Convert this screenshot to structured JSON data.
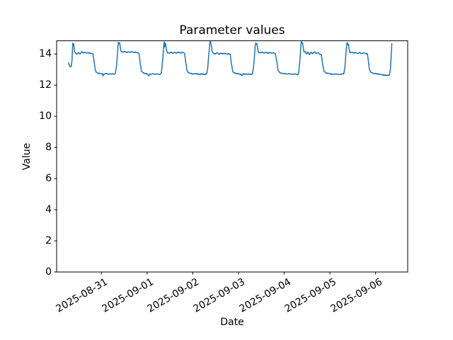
{
  "figure": {
    "background": "#ffffff",
    "text_color": "#000000",
    "spine_color": "#000000"
  },
  "chart_data": {
    "type": "line",
    "title": "Parameter values",
    "xlabel": "Date",
    "ylabel": "Value",
    "grid": false,
    "legend": null,
    "series_color": "#1f77b4",
    "line_width": 1.5,
    "ylim": [
      0,
      14.85
    ],
    "yticks": [
      {
        "value": 0,
        "label": "0"
      },
      {
        "value": 2,
        "label": "2"
      },
      {
        "value": 4,
        "label": "4"
      },
      {
        "value": 6,
        "label": "6"
      },
      {
        "value": 8,
        "label": "8"
      },
      {
        "value": 10,
        "label": "10"
      },
      {
        "value": 12,
        "label": "12"
      },
      {
        "value": 14,
        "label": "14"
      }
    ],
    "xlim": [
      "2025-08-30T00:30",
      "2025-09-06T16:50"
    ],
    "xticks": [
      {
        "time": "2025-08-31T00:00",
        "label": "2025-08-31"
      },
      {
        "time": "2025-09-01T00:00",
        "label": "2025-09-01"
      },
      {
        "time": "2025-09-02T00:00",
        "label": "2025-09-02"
      },
      {
        "time": "2025-09-03T00:00",
        "label": "2025-09-03"
      },
      {
        "time": "2025-09-04T00:00",
        "label": "2025-09-04"
      },
      {
        "time": "2025-09-05T00:00",
        "label": "2025-09-05"
      },
      {
        "time": "2025-09-06T00:00",
        "label": "2025-09-06"
      }
    ],
    "x_tick_rotation_deg": 30,
    "noise": {
      "amplitude": 0.025,
      "sample_minutes": 12,
      "seed": 42
    },
    "series": [
      {
        "points": [
          [
            "2025-08-30T06:45",
            13.45
          ],
          [
            "2025-08-30T07:10",
            13.28
          ],
          [
            "2025-08-30T07:40",
            13.18
          ],
          [
            "2025-08-30T08:10",
            13.22
          ],
          [
            "2025-08-30T08:35",
            13.6
          ],
          [
            "2025-08-30T08:50",
            14.3
          ],
          [
            "2025-08-30T09:00",
            14.7
          ],
          [
            "2025-08-30T09:10",
            14.62
          ],
          [
            "2025-08-30T09:25",
            14.66
          ],
          [
            "2025-08-30T09:40",
            14.4
          ],
          [
            "2025-08-30T09:55",
            14.15
          ],
          [
            "2025-08-30T10:30",
            14.05
          ],
          [
            "2025-08-30T11:15",
            14.0
          ],
          [
            "2025-08-30T12:00",
            14.1
          ],
          [
            "2025-08-30T12:45",
            14.0
          ],
          [
            "2025-08-30T13:40",
            14.15
          ],
          [
            "2025-08-30T14:30",
            14.08
          ],
          [
            "2025-08-30T15:30",
            14.1
          ],
          [
            "2025-08-30T16:30",
            14.05
          ],
          [
            "2025-08-30T17:30",
            14.08
          ],
          [
            "2025-08-30T18:30",
            14.04
          ],
          [
            "2025-08-30T19:30",
            14.02
          ],
          [
            "2025-08-30T20:00",
            13.7
          ],
          [
            "2025-08-30T20:45",
            13.0
          ],
          [
            "2025-08-30T21:20",
            12.82
          ],
          [
            "2025-08-30T22:15",
            12.77
          ],
          [
            "2025-08-30T23:15",
            12.74
          ],
          [
            "2025-08-31T00:30",
            12.74
          ],
          [
            "2025-08-31T00:55",
            12.6
          ],
          [
            "2025-08-31T01:15",
            12.72
          ],
          [
            "2025-08-31T02:30",
            12.74
          ],
          [
            "2025-08-31T04:00",
            12.71
          ],
          [
            "2025-08-31T05:30",
            12.73
          ],
          [
            "2025-08-31T06:45",
            12.7
          ],
          [
            "2025-08-31T07:20",
            12.76
          ],
          [
            "2025-08-31T08:00",
            13.3
          ],
          [
            "2025-08-31T08:40",
            14.4
          ],
          [
            "2025-08-31T08:55",
            14.75
          ],
          [
            "2025-08-31T09:15",
            14.68
          ],
          [
            "2025-08-31T09:35",
            14.72
          ],
          [
            "2025-08-31T09:55",
            14.45
          ],
          [
            "2025-08-31T10:15",
            14.18
          ],
          [
            "2025-08-31T11:00",
            14.12
          ],
          [
            "2025-08-31T12:00",
            14.16
          ],
          [
            "2025-08-31T13:00",
            14.1
          ],
          [
            "2025-08-31T14:00",
            14.14
          ],
          [
            "2025-08-31T15:00",
            14.1
          ],
          [
            "2025-08-31T16:00",
            14.15
          ],
          [
            "2025-08-31T17:00",
            14.1
          ],
          [
            "2025-08-31T18:00",
            14.13
          ],
          [
            "2025-08-31T19:00",
            14.08
          ],
          [
            "2025-08-31T19:45",
            14.05
          ],
          [
            "2025-08-31T20:20",
            13.45
          ],
          [
            "2025-08-31T21:00",
            12.9
          ],
          [
            "2025-08-31T21:45",
            12.8
          ],
          [
            "2025-08-31T22:45",
            12.76
          ],
          [
            "2025-09-01T00:00",
            12.73
          ],
          [
            "2025-09-01T01:00",
            12.6
          ],
          [
            "2025-09-01T01:20",
            12.71
          ],
          [
            "2025-09-01T02:45",
            12.73
          ],
          [
            "2025-09-01T04:15",
            12.7
          ],
          [
            "2025-09-01T05:45",
            12.72
          ],
          [
            "2025-09-01T07:00",
            12.71
          ],
          [
            "2025-09-01T07:30",
            12.8
          ],
          [
            "2025-09-01T08:15",
            13.7
          ],
          [
            "2025-09-01T08:45",
            14.55
          ],
          [
            "2025-09-01T09:00",
            14.78
          ],
          [
            "2025-09-01T09:15",
            14.45
          ],
          [
            "2025-09-01T09:30",
            14.7
          ],
          [
            "2025-09-01T09:45",
            14.65
          ],
          [
            "2025-09-01T10:05",
            14.3
          ],
          [
            "2025-09-01T10:30",
            14.1
          ],
          [
            "2025-09-01T11:30",
            14.06
          ],
          [
            "2025-09-01T12:30",
            14.12
          ],
          [
            "2025-09-01T13:30",
            14.05
          ],
          [
            "2025-09-01T14:30",
            14.11
          ],
          [
            "2025-09-01T15:30",
            14.06
          ],
          [
            "2025-09-01T16:30",
            14.12
          ],
          [
            "2025-09-01T17:30",
            14.07
          ],
          [
            "2025-09-01T18:45",
            14.1
          ],
          [
            "2025-09-01T19:40",
            14.04
          ],
          [
            "2025-09-01T20:15",
            13.5
          ],
          [
            "2025-09-01T21:00",
            12.92
          ],
          [
            "2025-09-01T21:50",
            12.8
          ],
          [
            "2025-09-01T23:00",
            12.75
          ],
          [
            "2025-09-02T00:15",
            12.72
          ],
          [
            "2025-09-02T01:45",
            12.74
          ],
          [
            "2025-09-02T03:15",
            12.7
          ],
          [
            "2025-09-02T04:45",
            12.72
          ],
          [
            "2025-09-02T06:15",
            12.69
          ],
          [
            "2025-09-02T07:15",
            12.73
          ],
          [
            "2025-09-02T07:45",
            13.0
          ],
          [
            "2025-09-02T08:30",
            14.1
          ],
          [
            "2025-09-02T08:55",
            14.7
          ],
          [
            "2025-09-02T09:10",
            14.82
          ],
          [
            "2025-09-02T09:30",
            14.7
          ],
          [
            "2025-09-02T09:50",
            14.5
          ],
          [
            "2025-09-02T10:10",
            14.15
          ],
          [
            "2025-09-02T10:45",
            14.05
          ],
          [
            "2025-09-02T11:45",
            14.0
          ],
          [
            "2025-09-02T12:45",
            14.08
          ],
          [
            "2025-09-02T13:45",
            13.98
          ],
          [
            "2025-09-02T14:45",
            14.06
          ],
          [
            "2025-09-02T15:45",
            14.0
          ],
          [
            "2025-09-02T16:45",
            14.05
          ],
          [
            "2025-09-02T17:45",
            14.0
          ],
          [
            "2025-09-02T18:45",
            14.03
          ],
          [
            "2025-09-02T19:40",
            13.97
          ],
          [
            "2025-09-02T20:15",
            13.4
          ],
          [
            "2025-09-02T21:00",
            12.88
          ],
          [
            "2025-09-02T21:50",
            12.78
          ],
          [
            "2025-09-02T23:00",
            12.74
          ],
          [
            "2025-09-03T00:30",
            12.72
          ],
          [
            "2025-09-03T02:00",
            12.63
          ],
          [
            "2025-09-03T02:20",
            12.72
          ],
          [
            "2025-09-03T03:45",
            12.7
          ],
          [
            "2025-09-03T05:15",
            12.72
          ],
          [
            "2025-09-03T06:45",
            12.69
          ],
          [
            "2025-09-03T07:25",
            12.75
          ],
          [
            "2025-09-03T08:05",
            13.4
          ],
          [
            "2025-09-03T08:45",
            14.5
          ],
          [
            "2025-09-03T09:00",
            14.72
          ],
          [
            "2025-09-03T09:20",
            14.64
          ],
          [
            "2025-09-03T09:40",
            14.68
          ],
          [
            "2025-09-03T10:00",
            14.38
          ],
          [
            "2025-09-03T10:25",
            14.12
          ],
          [
            "2025-09-03T11:15",
            14.08
          ],
          [
            "2025-09-03T12:15",
            14.13
          ],
          [
            "2025-09-03T13:15",
            14.06
          ],
          [
            "2025-09-03T14:15",
            14.11
          ],
          [
            "2025-09-03T15:15",
            14.05
          ],
          [
            "2025-09-03T16:15",
            14.1
          ],
          [
            "2025-09-03T17:15",
            14.06
          ],
          [
            "2025-09-03T18:15",
            14.09
          ],
          [
            "2025-09-03T19:20",
            14.03
          ],
          [
            "2025-09-03T20:00",
            13.6
          ],
          [
            "2025-09-03T20:45",
            12.95
          ],
          [
            "2025-09-03T21:30",
            12.82
          ],
          [
            "2025-09-03T22:45",
            12.76
          ],
          [
            "2025-09-04T00:00",
            12.74
          ],
          [
            "2025-09-04T01:30",
            12.71
          ],
          [
            "2025-09-04T03:00",
            12.73
          ],
          [
            "2025-09-04T04:30",
            12.7
          ],
          [
            "2025-09-04T06:00",
            12.72
          ],
          [
            "2025-09-04T07:10",
            12.67
          ],
          [
            "2025-09-04T07:35",
            12.78
          ],
          [
            "2025-09-04T08:15",
            13.6
          ],
          [
            "2025-09-04T08:45",
            14.55
          ],
          [
            "2025-09-04T09:00",
            14.8
          ],
          [
            "2025-09-04T09:20",
            14.68
          ],
          [
            "2025-09-04T09:40",
            14.72
          ],
          [
            "2025-09-04T10:00",
            14.4
          ],
          [
            "2025-09-04T10:20",
            14.14
          ],
          [
            "2025-09-04T11:00",
            14.16
          ],
          [
            "2025-09-04T11:45",
            14.0
          ],
          [
            "2025-09-04T12:30",
            14.13
          ],
          [
            "2025-09-04T13:15",
            13.96
          ],
          [
            "2025-09-04T14:00",
            14.12
          ],
          [
            "2025-09-04T14:45",
            14.02
          ],
          [
            "2025-09-04T15:45",
            14.14
          ],
          [
            "2025-09-04T16:45",
            14.04
          ],
          [
            "2025-09-04T17:45",
            14.08
          ],
          [
            "2025-09-04T18:45",
            13.99
          ],
          [
            "2025-09-04T19:30",
            13.95
          ],
          [
            "2025-09-04T20:10",
            13.35
          ],
          [
            "2025-09-04T20:55",
            12.88
          ],
          [
            "2025-09-04T21:45",
            12.79
          ],
          [
            "2025-09-04T23:00",
            12.75
          ],
          [
            "2025-09-05T00:15",
            12.73
          ],
          [
            "2025-09-05T01:45",
            12.7
          ],
          [
            "2025-09-05T03:15",
            12.72
          ],
          [
            "2025-09-05T04:45",
            12.69
          ],
          [
            "2025-09-05T06:15",
            12.71
          ],
          [
            "2025-09-05T07:15",
            12.74
          ],
          [
            "2025-09-05T07:50",
            13.1
          ],
          [
            "2025-09-05T08:30",
            14.2
          ],
          [
            "2025-09-05T08:50",
            14.68
          ],
          [
            "2025-09-05T09:05",
            14.73
          ],
          [
            "2025-09-05T09:25",
            14.58
          ],
          [
            "2025-09-05T09:45",
            14.63
          ],
          [
            "2025-09-05T10:05",
            14.3
          ],
          [
            "2025-09-05T10:30",
            14.08
          ],
          [
            "2025-09-05T11:30",
            14.12
          ],
          [
            "2025-09-05T12:30",
            14.05
          ],
          [
            "2025-09-05T13:30",
            14.1
          ],
          [
            "2025-09-05T14:30",
            14.04
          ],
          [
            "2025-09-05T15:30",
            14.09
          ],
          [
            "2025-09-05T16:30",
            14.03
          ],
          [
            "2025-09-05T17:30",
            14.07
          ],
          [
            "2025-09-05T18:30",
            14.02
          ],
          [
            "2025-09-05T19:30",
            14.05
          ],
          [
            "2025-09-05T20:00",
            13.75
          ],
          [
            "2025-09-05T20:40",
            13.05
          ],
          [
            "2025-09-05T21:25",
            12.83
          ],
          [
            "2025-09-05T22:30",
            12.78
          ],
          [
            "2025-09-05T23:45",
            12.74
          ],
          [
            "2025-09-06T01:00",
            12.72
          ],
          [
            "2025-09-06T02:30",
            12.69
          ],
          [
            "2025-09-06T04:00",
            12.66
          ],
          [
            "2025-09-06T05:30",
            12.64
          ],
          [
            "2025-09-06T06:45",
            12.63
          ],
          [
            "2025-09-06T07:15",
            12.66
          ],
          [
            "2025-09-06T07:40",
            12.95
          ],
          [
            "2025-09-06T08:00",
            13.5
          ],
          [
            "2025-09-06T08:15",
            14.05
          ],
          [
            "2025-09-06T08:30",
            14.68
          ]
        ]
      }
    ]
  }
}
